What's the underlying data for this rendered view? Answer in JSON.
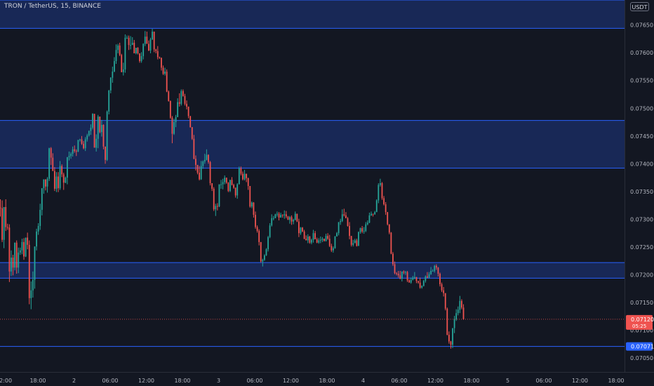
{
  "header": {
    "symbol_title": "TRON / TetherUS, 15, BINANCE",
    "currency_label": "USDT"
  },
  "colors": {
    "background": "#131722",
    "up": "#26a69a",
    "down": "#ef5350",
    "zone_fill": "#1a2a5c",
    "zone_line": "#2962ff",
    "axis_text": "#b2b5be",
    "last_price_bg": "#ef5350",
    "level_label_bg": "#2962ff"
  },
  "price_labels": {
    "last_price": "0.07120",
    "countdown": "05:25",
    "level_price": "0.07071"
  },
  "chart_data": {
    "type": "candlestick",
    "title": "TRON / TetherUS, 15, BINANCE",
    "ylim": [
      0.07025,
      0.07695
    ],
    "y_ticks": [
      "0.07650",
      "0.07600",
      "0.07550",
      "0.07500",
      "0.07450",
      "0.07400",
      "0.07350",
      "0.07300",
      "0.07250",
      "0.07200",
      "0.07150",
      "0.07100",
      "0.07050"
    ],
    "x_ticks": [
      "18:00",
      "2",
      "06:00",
      "12:00",
      "18:00",
      "3",
      "06:00",
      "12:00",
      "18:00",
      "4",
      "06:00",
      "12:00",
      "18:00",
      "5",
      "06:00",
      "12:00",
      "18:00"
    ],
    "zones": [
      {
        "top": 0.07695,
        "bottom": 0.07644
      },
      {
        "top": 0.07478,
        "bottom": 0.07392
      },
      {
        "top": 0.07222,
        "bottom": 0.07194
      }
    ],
    "levels": [
      0.07071
    ],
    "last_price": 0.0712,
    "candles": {
      "open": [
        0.07321,
        0.0732,
        0.07263,
        0.07322,
        0.07286,
        0.07285,
        0.07206,
        0.07231,
        0.07213,
        0.07258,
        0.07213,
        0.0724,
        0.07244,
        0.07259,
        0.07233,
        0.07267,
        0.07254,
        0.07158,
        0.07172,
        0.07191,
        0.07251,
        0.07278,
        0.07288,
        0.07317,
        0.07356,
        0.07372,
        0.07359,
        0.07373,
        0.07428,
        0.07411,
        0.07387,
        0.07355,
        0.07377,
        0.07356,
        0.07396,
        0.07381,
        0.07366,
        0.07375,
        0.07412,
        0.07414,
        0.07418,
        0.07426,
        0.07423,
        0.07422,
        0.07443,
        0.07444,
        0.07436,
        0.07428,
        0.07444,
        0.07451,
        0.07459,
        0.07465,
        0.0749,
        0.07429,
        0.07445,
        0.07485,
        0.07457,
        0.0747,
        0.07431,
        0.07407,
        0.07494,
        0.07532,
        0.07555,
        0.07566,
        0.07585,
        0.07605,
        0.07613,
        0.07596,
        0.07565,
        0.0757,
        0.07627,
        0.07627,
        0.07614,
        0.07614,
        0.07618,
        0.07599,
        0.07609,
        0.07599,
        0.07585,
        0.07594,
        0.07616,
        0.07629,
        0.07616,
        0.07604,
        0.07624,
        0.07638,
        0.07606,
        0.07603,
        0.07592,
        0.07591,
        0.07573,
        0.07562,
        0.07566,
        0.0753,
        0.07513,
        0.07483,
        0.07454,
        0.07475,
        0.07484,
        0.07511,
        0.07508,
        0.07531,
        0.07522,
        0.07508,
        0.07503,
        0.07486,
        0.07466,
        0.07445,
        0.07409,
        0.07398,
        0.07384,
        0.07372,
        0.07396,
        0.07404,
        0.07407,
        0.07416,
        0.07403,
        0.07365,
        0.07355,
        0.07318,
        0.07324,
        0.07323,
        0.07363,
        0.07363,
        0.07367,
        0.07375,
        0.07366,
        0.07351,
        0.07371,
        0.07362,
        0.07357,
        0.07343,
        0.07363,
        0.07392,
        0.07382,
        0.07372,
        0.07382,
        0.07374,
        0.0736,
        0.07323,
        0.0733,
        0.07308,
        0.07286,
        0.07279,
        0.07259,
        0.07224,
        0.07227,
        0.07235,
        0.07246,
        0.07268,
        0.07289,
        0.07302,
        0.07302,
        0.07309,
        0.0731,
        0.07303,
        0.07308,
        0.07307,
        0.07309,
        0.07305,
        0.07299,
        0.07304,
        0.07296,
        0.07299,
        0.0731,
        0.07296,
        0.07275,
        0.07285,
        0.07278,
        0.07265,
        0.07262,
        0.07269,
        0.07258,
        0.07263,
        0.07275,
        0.07264,
        0.07258,
        0.07262,
        0.07263,
        0.07265,
        0.07261,
        0.0727,
        0.07265,
        0.07252,
        0.07244,
        0.07248,
        0.07269,
        0.07275,
        0.07295,
        0.07297,
        0.07309,
        0.07307,
        0.07302,
        0.07288,
        0.0727,
        0.07254,
        0.07257,
        0.07262,
        0.07252,
        0.07277,
        0.07284,
        0.07278,
        0.07279,
        0.07291,
        0.07294,
        0.07307,
        0.0731,
        0.07309,
        0.07313,
        0.07334,
        0.07362,
        0.07365,
        0.07338,
        0.07327,
        0.07313,
        0.07291,
        0.07276,
        0.07238,
        0.07219,
        0.07203,
        0.07202,
        0.07199,
        0.07193,
        0.07206,
        0.07204,
        0.07205,
        0.0719,
        0.07186,
        0.07191,
        0.07195,
        0.07196,
        0.07189,
        0.07186,
        0.07177,
        0.0718,
        0.07189,
        0.07197,
        0.07195,
        0.07201,
        0.07207,
        0.07207,
        0.07216,
        0.07213,
        0.07202,
        0.07183,
        0.07172,
        0.07167,
        0.07139,
        0.07092,
        0.0708,
        0.07074,
        0.07104,
        0.0712,
        0.07131,
        0.07137,
        0.07153,
        0.07141
      ],
      "close": [
        0.0732,
        0.07263,
        0.07322,
        0.07286,
        0.07285,
        0.07206,
        0.07231,
        0.07213,
        0.07258,
        0.07213,
        0.0724,
        0.07244,
        0.07259,
        0.07233,
        0.07267,
        0.07254,
        0.07158,
        0.07172,
        0.07191,
        0.07251,
        0.07278,
        0.07288,
        0.07317,
        0.07356,
        0.07372,
        0.07359,
        0.07373,
        0.07428,
        0.07411,
        0.07387,
        0.07355,
        0.07377,
        0.07356,
        0.07396,
        0.07381,
        0.07366,
        0.07375,
        0.07412,
        0.07414,
        0.07418,
        0.07426,
        0.07423,
        0.07422,
        0.07443,
        0.07444,
        0.07436,
        0.07428,
        0.07444,
        0.07451,
        0.07459,
        0.07465,
        0.0749,
        0.07429,
        0.07445,
        0.07485,
        0.07457,
        0.0747,
        0.07431,
        0.07407,
        0.07494,
        0.07532,
        0.07555,
        0.07566,
        0.07585,
        0.07605,
        0.07613,
        0.07596,
        0.07565,
        0.0757,
        0.07627,
        0.07627,
        0.07614,
        0.07614,
        0.07618,
        0.07599,
        0.07609,
        0.07599,
        0.07585,
        0.07594,
        0.07616,
        0.07629,
        0.07616,
        0.07604,
        0.07624,
        0.07638,
        0.07606,
        0.07603,
        0.07592,
        0.07591,
        0.07573,
        0.07562,
        0.07566,
        0.0753,
        0.07513,
        0.07483,
        0.07454,
        0.07475,
        0.07484,
        0.07511,
        0.07508,
        0.07531,
        0.07522,
        0.07508,
        0.07503,
        0.07486,
        0.07466,
        0.07445,
        0.07409,
        0.07398,
        0.07384,
        0.07372,
        0.07396,
        0.07404,
        0.07407,
        0.07416,
        0.07403,
        0.07365,
        0.07355,
        0.07318,
        0.07324,
        0.07323,
        0.07363,
        0.07363,
        0.07367,
        0.07375,
        0.07366,
        0.07351,
        0.07371,
        0.07362,
        0.07357,
        0.07343,
        0.07363,
        0.07392,
        0.07382,
        0.07372,
        0.07382,
        0.07374,
        0.0736,
        0.07323,
        0.0733,
        0.07308,
        0.07286,
        0.07279,
        0.07259,
        0.07224,
        0.07227,
        0.07235,
        0.07246,
        0.07268,
        0.07289,
        0.07302,
        0.07302,
        0.07309,
        0.0731,
        0.07303,
        0.07308,
        0.07307,
        0.07309,
        0.07305,
        0.07299,
        0.07304,
        0.07296,
        0.07299,
        0.0731,
        0.07296,
        0.07275,
        0.07285,
        0.07278,
        0.07265,
        0.07262,
        0.07269,
        0.07258,
        0.07263,
        0.07275,
        0.07264,
        0.07258,
        0.07262,
        0.07263,
        0.07265,
        0.07261,
        0.0727,
        0.07265,
        0.07252,
        0.07244,
        0.07248,
        0.07269,
        0.07275,
        0.07295,
        0.07297,
        0.07309,
        0.07307,
        0.07302,
        0.07288,
        0.0727,
        0.07254,
        0.07257,
        0.07262,
        0.07252,
        0.07277,
        0.07284,
        0.07278,
        0.07279,
        0.07291,
        0.07294,
        0.07307,
        0.0731,
        0.07309,
        0.07313,
        0.07334,
        0.07362,
        0.07365,
        0.07338,
        0.07327,
        0.07313,
        0.07291,
        0.07276,
        0.07238,
        0.07219,
        0.07203,
        0.07202,
        0.07199,
        0.07193,
        0.07206,
        0.07204,
        0.07205,
        0.0719,
        0.07186,
        0.07191,
        0.07195,
        0.07196,
        0.07189,
        0.07186,
        0.07177,
        0.0718,
        0.07189,
        0.07197,
        0.07195,
        0.07201,
        0.07207,
        0.07207,
        0.07216,
        0.07213,
        0.07202,
        0.07183,
        0.07172,
        0.07167,
        0.07139,
        0.07092,
        0.0708,
        0.07074,
        0.07104,
        0.0712,
        0.07131,
        0.07137,
        0.07153,
        0.07141,
        0.0712
      ],
      "high": [
        0.07336,
        0.07334,
        0.07322,
        0.07336,
        0.07292,
        0.07291,
        0.07244,
        0.07236,
        0.07258,
        0.07262,
        0.07249,
        0.07249,
        0.07265,
        0.07266,
        0.07267,
        0.07276,
        0.07262,
        0.07188,
        0.07206,
        0.07251,
        0.07283,
        0.07293,
        0.07328,
        0.07356,
        0.07372,
        0.07372,
        0.07376,
        0.07429,
        0.0743,
        0.07419,
        0.07394,
        0.07385,
        0.07385,
        0.07405,
        0.07399,
        0.07384,
        0.07377,
        0.07412,
        0.07422,
        0.07421,
        0.07431,
        0.07433,
        0.07426,
        0.07443,
        0.07445,
        0.0745,
        0.07441,
        0.07448,
        0.07454,
        0.0746,
        0.07471,
        0.07491,
        0.0749,
        0.07453,
        0.07488,
        0.07485,
        0.07479,
        0.07471,
        0.07431,
        0.07496,
        0.07533,
        0.07556,
        0.07575,
        0.07592,
        0.07615,
        0.07616,
        0.07618,
        0.07598,
        0.07582,
        0.07633,
        0.07631,
        0.07631,
        0.0763,
        0.07628,
        0.07623,
        0.07609,
        0.0761,
        0.07599,
        0.07601,
        0.07617,
        0.07639,
        0.07638,
        0.07622,
        0.07627,
        0.07643,
        0.07638,
        0.07607,
        0.07612,
        0.07593,
        0.07591,
        0.07577,
        0.07573,
        0.0757,
        0.07532,
        0.07514,
        0.07486,
        0.07481,
        0.07488,
        0.07518,
        0.07527,
        0.07534,
        0.07534,
        0.07526,
        0.07514,
        0.07503,
        0.07486,
        0.07466,
        0.07452,
        0.07415,
        0.07398,
        0.07396,
        0.07405,
        0.07406,
        0.07418,
        0.07426,
        0.07417,
        0.07405,
        0.07365,
        0.07358,
        0.07328,
        0.07329,
        0.07363,
        0.07371,
        0.07373,
        0.07379,
        0.07375,
        0.07367,
        0.07371,
        0.07376,
        0.07364,
        0.07357,
        0.07365,
        0.07395,
        0.07395,
        0.07386,
        0.07389,
        0.07382,
        0.07375,
        0.0736,
        0.07332,
        0.07331,
        0.07314,
        0.07289,
        0.07282,
        0.07259,
        0.07229,
        0.07237,
        0.07248,
        0.0727,
        0.07293,
        0.07309,
        0.07306,
        0.0731,
        0.07314,
        0.07313,
        0.07312,
        0.07309,
        0.07316,
        0.07315,
        0.07306,
        0.07306,
        0.07307,
        0.07301,
        0.07314,
        0.0731,
        0.07301,
        0.07286,
        0.07286,
        0.07281,
        0.07271,
        0.07273,
        0.0727,
        0.07265,
        0.07281,
        0.07279,
        0.07267,
        0.07266,
        0.07269,
        0.07268,
        0.07265,
        0.07274,
        0.07275,
        0.07272,
        0.07256,
        0.07251,
        0.0727,
        0.07277,
        0.07295,
        0.07301,
        0.07318,
        0.07319,
        0.07313,
        0.07304,
        0.07295,
        0.0727,
        0.07263,
        0.07265,
        0.07265,
        0.07278,
        0.07285,
        0.07288,
        0.07286,
        0.07295,
        0.07298,
        0.07312,
        0.07314,
        0.0731,
        0.07315,
        0.07336,
        0.07365,
        0.07373,
        0.07367,
        0.07342,
        0.07331,
        0.07313,
        0.07291,
        0.07277,
        0.07241,
        0.07224,
        0.07205,
        0.07207,
        0.07207,
        0.07206,
        0.07208,
        0.07207,
        0.07207,
        0.07192,
        0.07195,
        0.07198,
        0.07205,
        0.07196,
        0.07189,
        0.07195,
        0.07181,
        0.07191,
        0.07199,
        0.07205,
        0.07205,
        0.07214,
        0.0721,
        0.07218,
        0.07219,
        0.07214,
        0.07204,
        0.07186,
        0.07178,
        0.07167,
        0.07141,
        0.07098,
        0.07081,
        0.07104,
        0.07126,
        0.07138,
        0.07143,
        0.07162,
        0.07156,
        0.07147
      ],
      "low": [
        0.07305,
        0.07259,
        0.07248,
        0.07279,
        0.07281,
        0.07187,
        0.07198,
        0.07199,
        0.07208,
        0.07202,
        0.07203,
        0.07236,
        0.07237,
        0.07227,
        0.07232,
        0.07246,
        0.07147,
        0.07138,
        0.07159,
        0.07175,
        0.07244,
        0.07272,
        0.07281,
        0.07307,
        0.07346,
        0.07352,
        0.07348,
        0.07369,
        0.07398,
        0.07387,
        0.07351,
        0.07349,
        0.07349,
        0.07353,
        0.07376,
        0.07353,
        0.07365,
        0.07363,
        0.07406,
        0.07409,
        0.07413,
        0.0742,
        0.07414,
        0.07421,
        0.0744,
        0.07434,
        0.07426,
        0.07423,
        0.0744,
        0.07449,
        0.07452,
        0.07462,
        0.07429,
        0.07422,
        0.07428,
        0.07455,
        0.07449,
        0.07426,
        0.074,
        0.07405,
        0.07489,
        0.07527,
        0.07546,
        0.07565,
        0.0758,
        0.07599,
        0.07594,
        0.07565,
        0.07559,
        0.07564,
        0.07625,
        0.07605,
        0.07606,
        0.07614,
        0.07599,
        0.07597,
        0.07597,
        0.07582,
        0.07582,
        0.07588,
        0.07612,
        0.07616,
        0.07603,
        0.07599,
        0.07623,
        0.07601,
        0.07599,
        0.07588,
        0.07589,
        0.07568,
        0.0756,
        0.07559,
        0.07529,
        0.07512,
        0.07481,
        0.07437,
        0.07452,
        0.07466,
        0.07484,
        0.07503,
        0.07505,
        0.07521,
        0.07505,
        0.07498,
        0.07482,
        0.07465,
        0.07443,
        0.07408,
        0.07388,
        0.07381,
        0.0737,
        0.07371,
        0.07391,
        0.074,
        0.07406,
        0.074,
        0.07361,
        0.07351,
        0.07315,
        0.07306,
        0.07316,
        0.07322,
        0.07355,
        0.07354,
        0.07363,
        0.07364,
        0.07349,
        0.07349,
        0.07361,
        0.07355,
        0.07339,
        0.07337,
        0.07363,
        0.07379,
        0.0737,
        0.0737,
        0.07367,
        0.07353,
        0.07321,
        0.0732,
        0.07303,
        0.07283,
        0.07276,
        0.07253,
        0.07222,
        0.07215,
        0.07225,
        0.07234,
        0.07242,
        0.07266,
        0.07287,
        0.07298,
        0.07302,
        0.07305,
        0.07298,
        0.07303,
        0.07303,
        0.07301,
        0.07302,
        0.07299,
        0.07292,
        0.0729,
        0.07291,
        0.07298,
        0.07295,
        0.07268,
        0.07272,
        0.07277,
        0.07264,
        0.07262,
        0.07257,
        0.07256,
        0.07255,
        0.07258,
        0.07264,
        0.07257,
        0.07256,
        0.07257,
        0.07259,
        0.0726,
        0.0726,
        0.07263,
        0.0725,
        0.07241,
        0.0724,
        0.07247,
        0.07269,
        0.07271,
        0.0729,
        0.07295,
        0.07305,
        0.07302,
        0.07287,
        0.07264,
        0.07251,
        0.07251,
        0.07257,
        0.07251,
        0.07252,
        0.07274,
        0.07275,
        0.07274,
        0.07277,
        0.07289,
        0.07293,
        0.07306,
        0.07305,
        0.07308,
        0.07313,
        0.07329,
        0.07359,
        0.07335,
        0.07325,
        0.07308,
        0.07289,
        0.07273,
        0.07237,
        0.07216,
        0.07201,
        0.07199,
        0.07195,
        0.07192,
        0.07188,
        0.07201,
        0.072,
        0.07187,
        0.07186,
        0.07184,
        0.0719,
        0.07192,
        0.07185,
        0.07184,
        0.07175,
        0.07175,
        0.07179,
        0.07186,
        0.07194,
        0.07194,
        0.072,
        0.07207,
        0.07204,
        0.07209,
        0.07197,
        0.07179,
        0.07169,
        0.07161,
        0.07136,
        0.07091,
        0.07076,
        0.07067,
        0.07068,
        0.07095,
        0.07117,
        0.07127,
        0.07131,
        0.07138,
        0.07119
      ]
    }
  }
}
